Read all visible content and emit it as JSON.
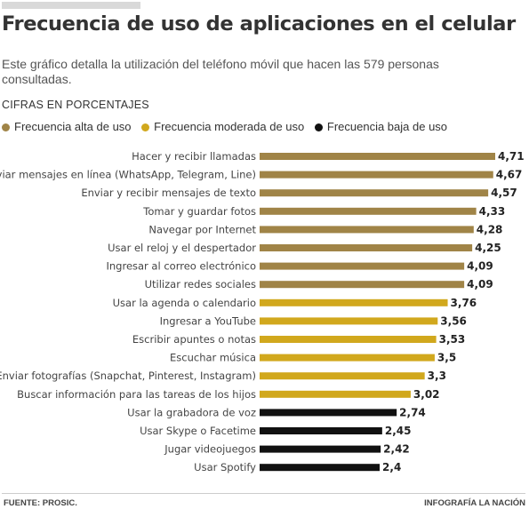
{
  "title": "Frecuencia de uso de aplicaciones en el celular",
  "subtitle": "Este gráfico detalla  la utilización del teléfono móvil que hacen las 579 personas consultadas.",
  "units_label": "CIFRAS EN PORCENTAJES",
  "footer": {
    "source": "FUENTE: PROSIC.",
    "credit": "INFOGRAFÍA LA NACIÓN"
  },
  "colors": {
    "alta": "#a08447",
    "moderada": "#d1a81d",
    "baja": "#111111"
  },
  "chart_data": {
    "type": "bar",
    "orientation": "horizontal",
    "legend": [
      {
        "key": "alta",
        "label": "Frecuencia alta de uso"
      },
      {
        "key": "moderada",
        "label": "Frecuencia moderada de uso"
      },
      {
        "key": "baja",
        "label": "Frecuencia baja de uso"
      }
    ],
    "categories": [
      "Hacer y recibir llamadas",
      "Enviar mensajes en línea (WhatsApp, Telegram, Line)",
      "Enviar y recibir mensajes de texto",
      "Tomar y guardar fotos",
      "Navegar por Internet",
      "Usar el reloj y el despertador",
      "Ingresar al correo electrónico",
      "Utilizar redes sociales",
      "Usar la agenda o calendario",
      "Ingresar a YouTube",
      "Escribir apuntes o notas",
      "Escuchar música",
      "Enviar fotografías (Snapchat, Pinterest, Instagram)",
      "Buscar información para las tareas de los hijos",
      "Usar la grabadora de voz",
      "Usar Skype o Facetime",
      "Jugar videojuegos",
      "Usar Spotify"
    ],
    "values": [
      4.71,
      4.67,
      4.57,
      4.33,
      4.28,
      4.25,
      4.09,
      4.09,
      3.76,
      3.56,
      3.53,
      3.5,
      3.3,
      3.02,
      2.74,
      2.45,
      2.42,
      2.4
    ],
    "value_labels": [
      "4,71",
      "4,67",
      "4,57",
      "4,33",
      "4,28",
      "4,25",
      "4,09",
      "4,09",
      "3,76",
      "3,56",
      "3,53",
      "3,5",
      "3,3",
      "3,02",
      "2,74",
      "2,45",
      "2,42",
      "2,4"
    ],
    "groups": [
      "alta",
      "alta",
      "alta",
      "alta",
      "alta",
      "alta",
      "alta",
      "alta",
      "moderada",
      "moderada",
      "moderada",
      "moderada",
      "moderada",
      "moderada",
      "baja",
      "baja",
      "baja",
      "baja"
    ],
    "xlim": [
      0,
      4.71
    ]
  }
}
